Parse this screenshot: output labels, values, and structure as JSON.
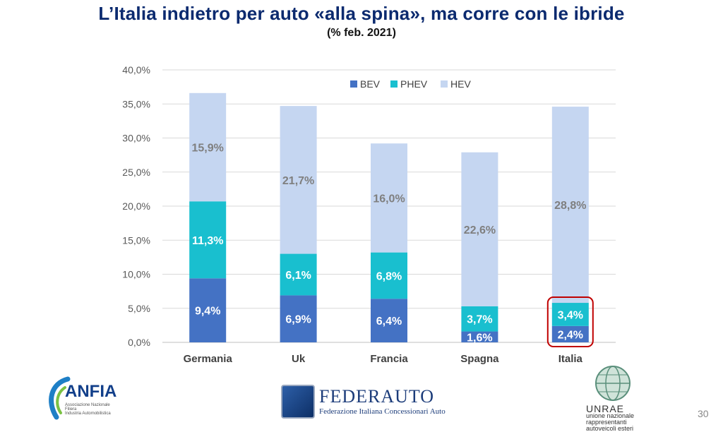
{
  "title": "L’Italia indietro per auto «alla spina», ma corre con le ibride",
  "subtitle": "(% feb. 2021)",
  "chart_data": {
    "type": "bar",
    "stacked": true,
    "categories": [
      "Germania",
      "Uk",
      "Francia",
      "Spagna",
      "Italia"
    ],
    "series": [
      {
        "name": "BEV",
        "values": [
          9.4,
          6.9,
          6.4,
          1.6,
          2.4
        ],
        "labels": [
          "9,4%",
          "6,9%",
          "6,4%",
          "1,6%",
          "2,4%"
        ],
        "color": "#4472c4",
        "label_color": "#ffffff"
      },
      {
        "name": "PHEV",
        "values": [
          11.3,
          6.1,
          6.8,
          3.7,
          3.4
        ],
        "labels": [
          "11,3%",
          "6,1%",
          "6,8%",
          "3,7%",
          "3,4%"
        ],
        "color": "#19bfcf",
        "label_color": "#ffffff"
      },
      {
        "name": "HEV",
        "values": [
          15.9,
          21.7,
          16.0,
          22.6,
          28.8
        ],
        "labels": [
          "15,9%",
          "21,7%",
          "16,0%",
          "22,6%",
          "28,8%"
        ],
        "color": "#c5d6f1",
        "label_color": "#7f7f7f"
      }
    ],
    "ylim": [
      0,
      40
    ],
    "yticks": [
      "0,0%",
      "5,0%",
      "10,0%",
      "15,0%",
      "20,0%",
      "25,0%",
      "30,0%",
      "35,0%",
      "40,0%"
    ],
    "grid": true,
    "legend_position": "top-center",
    "highlight": {
      "category": "Italia",
      "series": [
        "BEV",
        "PHEV"
      ],
      "color": "#c00000"
    }
  },
  "logos": {
    "anfia": {
      "name": "ANFIA",
      "sub": [
        "Associazione Nazionale",
        "Filiera",
        "Industria Automobilistica"
      ]
    },
    "federauto": {
      "name": "FEDERAUTO",
      "sub": "Federazione Italiana Concessionari Auto"
    },
    "unrae": {
      "name": "UNRAE",
      "sub": [
        "unione nazionale",
        "rappresentanti",
        "autoveicoli esteri"
      ]
    }
  },
  "page_number": "30"
}
